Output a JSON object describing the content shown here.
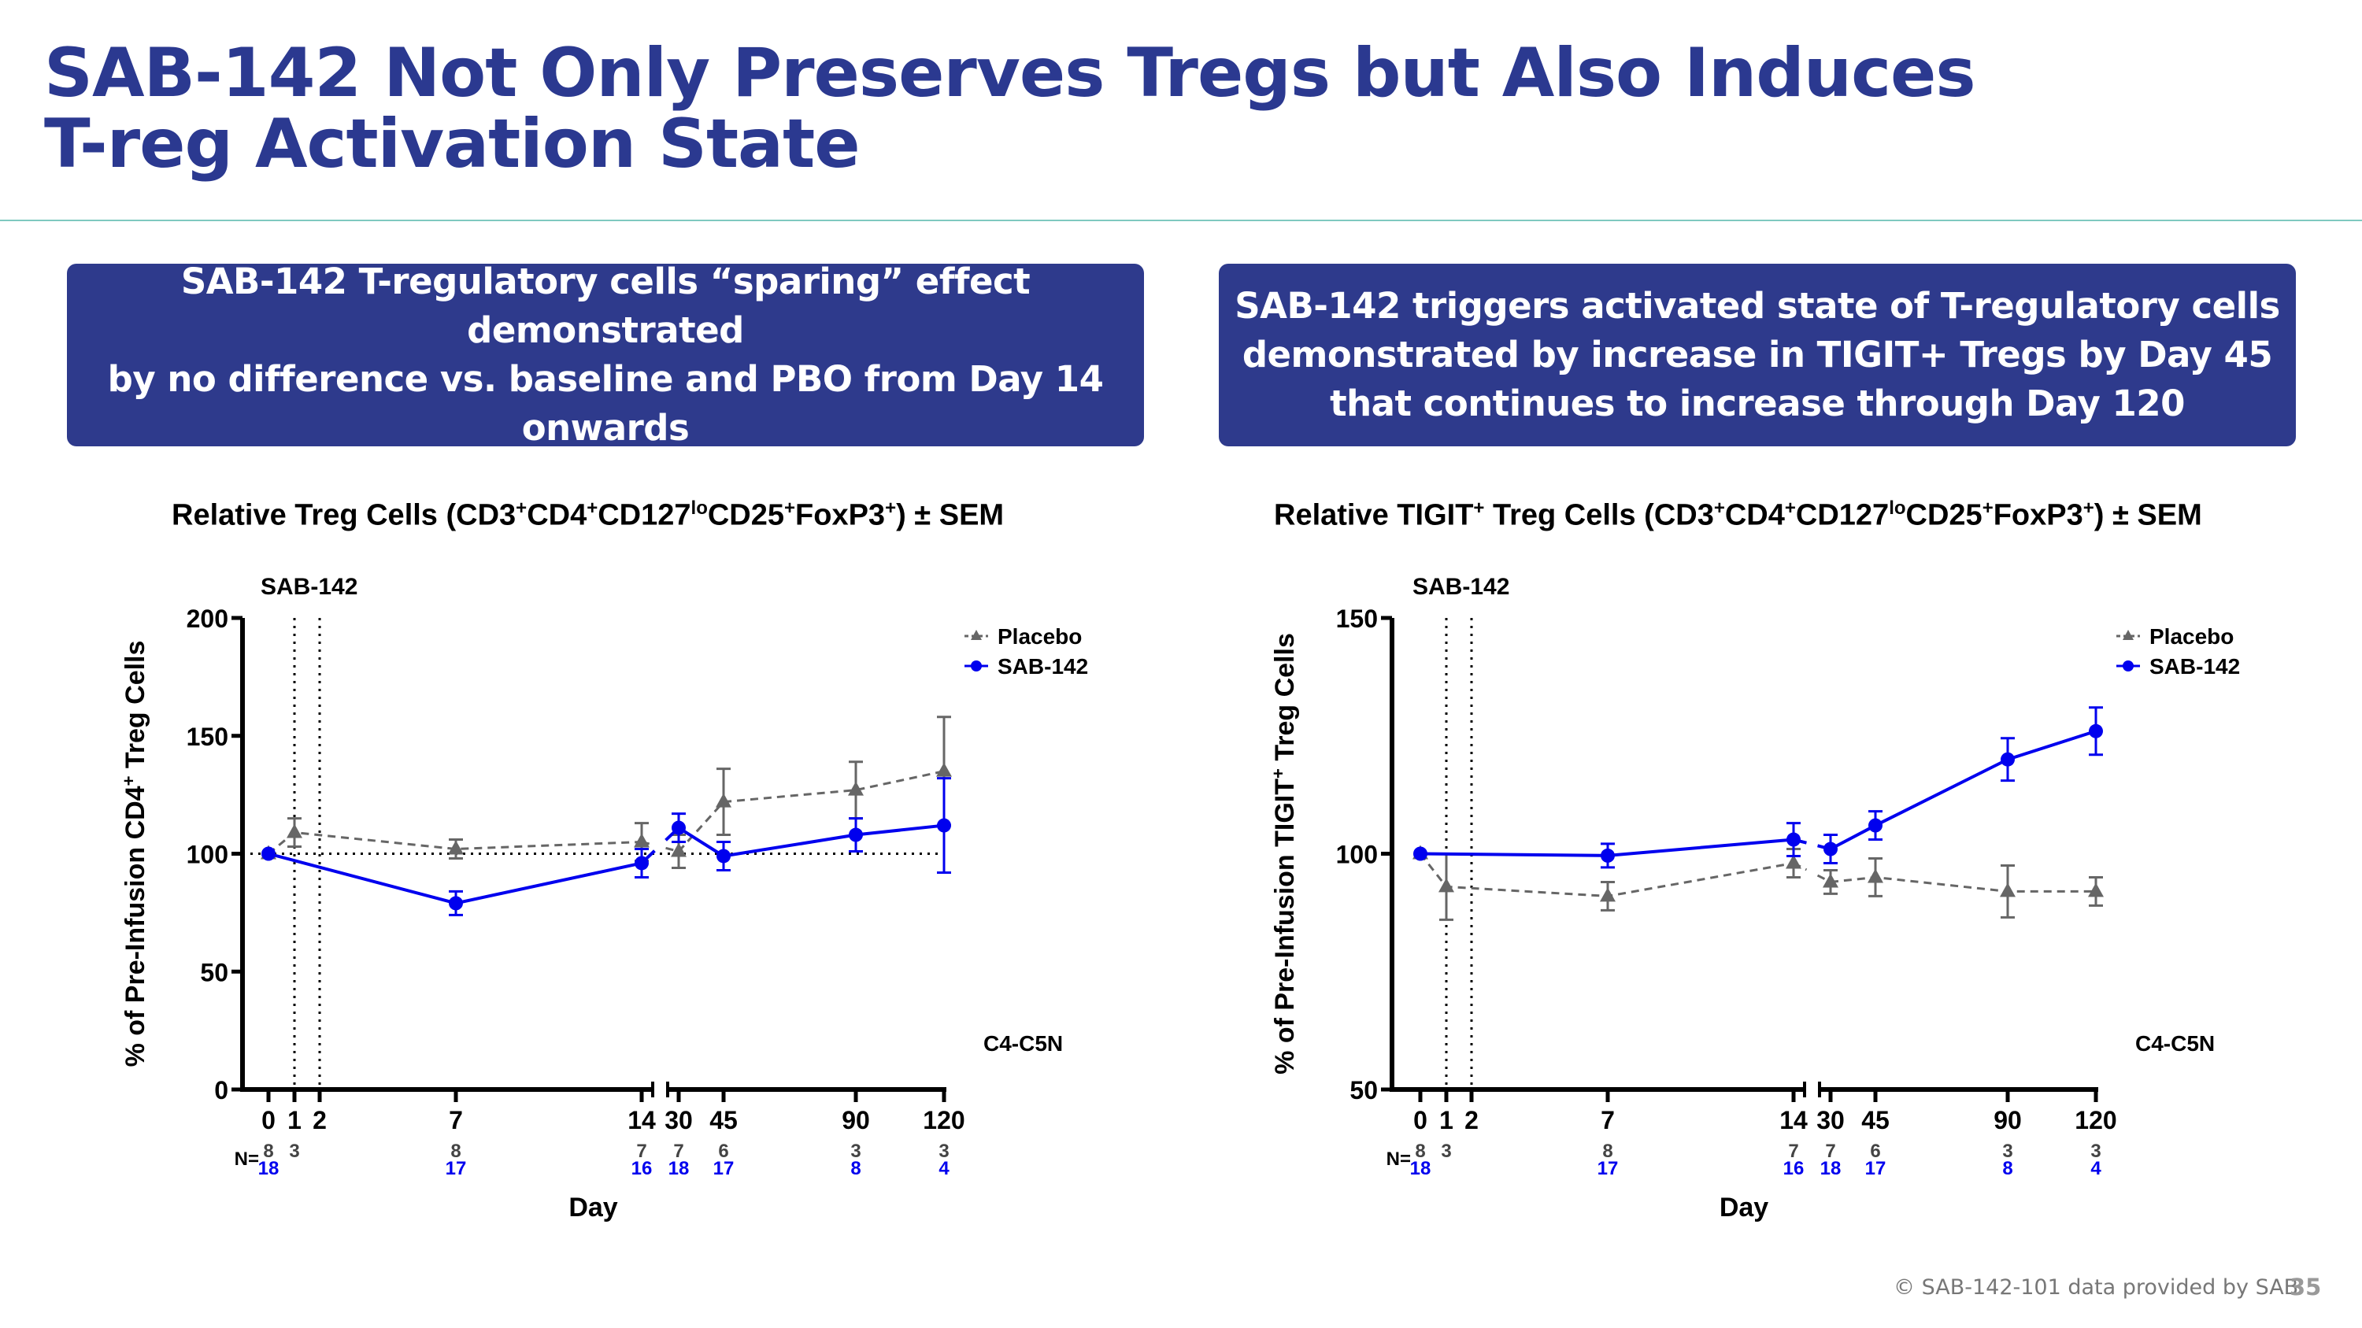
{
  "header": {
    "title_line1": "SAB-142 Not Only Preserves Tregs but Also Induces",
    "title_line2": "T-reg Activation State"
  },
  "callouts": [
    {
      "lines": [
        "SAB-142 T-regulatory cells “sparing” effect demonstrated",
        "by no difference vs. baseline and PBO from Day 14 onwards"
      ]
    },
    {
      "lines": [
        "SAB-142 triggers activated state of T-regulatory cells",
        "demonstrated by increase in TIGIT+ Tregs by Day 45",
        "that continues to increase through Day 120"
      ]
    }
  ],
  "colors": {
    "brand": "#2e3a8c",
    "placebo": "#666666",
    "sab142": "#0000ee",
    "rule": "#7fc9c0"
  },
  "chart_data": [
    {
      "type": "line",
      "title_parts": [
        {
          "t": "Relative Treg Cells (CD3"
        },
        {
          "t": "+",
          "sup": true
        },
        {
          "t": "CD4"
        },
        {
          "t": "+",
          "sup": true
        },
        {
          "t": "CD127"
        },
        {
          "t": "lo",
          "sup": true
        },
        {
          "t": "CD25"
        },
        {
          "t": "+",
          "sup": true
        },
        {
          "t": "FoxP3"
        },
        {
          "t": "+",
          "sup": true
        },
        {
          "t": ") ± SEM"
        }
      ],
      "ylabel": "% of Pre-Infusion CD4",
      "ylabel_sup": "+",
      "ylabel_tail": " Treg Cells",
      "xlabel": "Day",
      "ylim": [
        0,
        200
      ],
      "yticks": [
        "0",
        "50",
        "100",
        "150",
        "200"
      ],
      "x": [
        0,
        1,
        2,
        7,
        14,
        30,
        45,
        90,
        120
      ],
      "xtick_labels": [
        "0",
        "1",
        "2",
        "7",
        "14",
        "30",
        "45",
        "90",
        "120"
      ],
      "x_axis_break": "between 14 and 30",
      "reference_line": 100,
      "dosing_marker_label": "SAB-142",
      "dosing_days": [
        1,
        2
      ],
      "annotation": "C4-C5N",
      "legend_position": "top-right",
      "n_label": "N=",
      "series": [
        {
          "name": "Placebo",
          "marker": "triangle",
          "style": "dashed",
          "x": [
            0,
            1,
            7,
            14,
            30,
            45,
            90,
            120
          ],
          "y": [
            100,
            109,
            102,
            105,
            101,
            122,
            127,
            135
          ],
          "sem": [
            0,
            6,
            4,
            8,
            7,
            14,
            12,
            23
          ],
          "n": [
            "8",
            "3",
            "8",
            "7",
            "7",
            "6",
            "3",
            "3"
          ]
        },
        {
          "name": "SAB-142",
          "marker": "circle",
          "style": "solid",
          "x": [
            0,
            7,
            14,
            30,
            45,
            90,
            120
          ],
          "y": [
            100,
            79,
            96,
            111,
            99,
            108,
            112
          ],
          "sem": [
            0,
            5,
            6,
            6,
            6,
            7,
            20
          ],
          "n": [
            "18",
            "17",
            "16",
            "18",
            "17",
            "8",
            "4"
          ]
        }
      ]
    },
    {
      "type": "line",
      "title_parts": [
        {
          "t": "Relative TIGIT"
        },
        {
          "t": "+",
          "sup": true
        },
        {
          "t": " Treg Cells (CD3"
        },
        {
          "t": "+",
          "sup": true
        },
        {
          "t": "CD4"
        },
        {
          "t": "+",
          "sup": true
        },
        {
          "t": "CD127"
        },
        {
          "t": "lo",
          "sup": true
        },
        {
          "t": "CD25"
        },
        {
          "t": "+",
          "sup": true
        },
        {
          "t": "FoxP3"
        },
        {
          "t": "+",
          "sup": true
        },
        {
          "t": ") ± SEM"
        }
      ],
      "ylabel": "% of Pre-Infusion TIGIT",
      "ylabel_sup": "+",
      "ylabel_tail": " Treg Cells",
      "xlabel": "Day",
      "ylim": [
        50,
        150
      ],
      "yticks": [
        "50",
        "100",
        "150"
      ],
      "x": [
        0,
        1,
        2,
        7,
        14,
        30,
        45,
        90,
        120
      ],
      "xtick_labels": [
        "0",
        "1",
        "2",
        "7",
        "14",
        "30",
        "45",
        "90",
        "120"
      ],
      "x_axis_break": "between 14 and 30",
      "dosing_marker_label": "SAB-142",
      "dosing_days": [
        1,
        2
      ],
      "annotation": "C4-C5N",
      "legend_position": "top-right",
      "n_label": "N=",
      "series": [
        {
          "name": "Placebo",
          "marker": "triangle",
          "style": "dashed",
          "x": [
            0,
            1,
            7,
            14,
            30,
            45,
            90,
            120
          ],
          "y": [
            100,
            93,
            91,
            98,
            94,
            95,
            92,
            92
          ],
          "sem": [
            0,
            7,
            3,
            3,
            2.5,
            4,
            5.5,
            3
          ],
          "n": [
            "8",
            "3",
            "8",
            "7",
            "7",
            "6",
            "3",
            "3"
          ]
        },
        {
          "name": "SAB-142",
          "marker": "circle",
          "style": "solid",
          "x": [
            0,
            7,
            14,
            30,
            45,
            90,
            120
          ],
          "y": [
            100,
            99.6,
            103,
            101,
            106,
            120,
            126
          ],
          "sem": [
            0,
            2.5,
            3.5,
            3,
            3,
            4.5,
            5
          ],
          "n": [
            "18",
            "17",
            "16",
            "18",
            "17",
            "8",
            "4"
          ]
        }
      ]
    }
  ],
  "footer": {
    "source": "© SAB-142-101 data provided by SAB",
    "page": "35"
  }
}
